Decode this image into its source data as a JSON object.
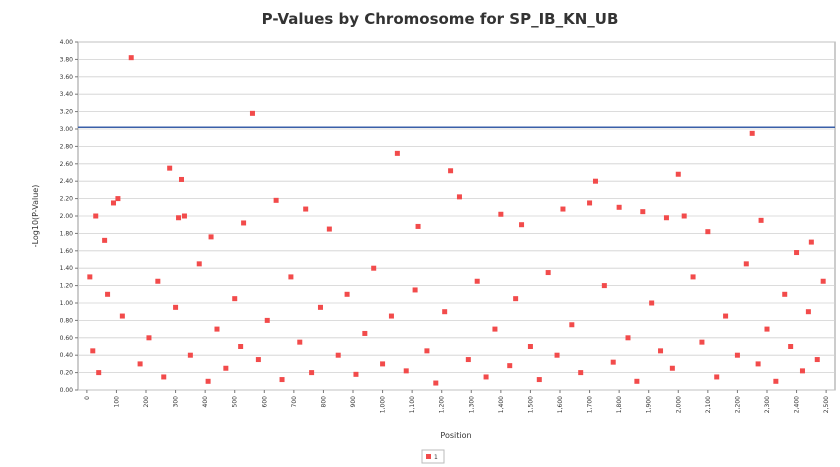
{
  "chart_data": {
    "type": "scatter",
    "title": "P-Values by Chromosome for SP_IB_KN_UB",
    "x_label": "Position",
    "y_label": "-Log10(P-Value)",
    "threshold": 3.02,
    "threshold_color": "#3a5fa8",
    "grid": true,
    "legend": "bottom",
    "xlim": [
      -30,
      2530
    ],
    "ylim": [
      0,
      4
    ],
    "xticks": [
      0,
      100,
      200,
      300,
      400,
      500,
      600,
      700,
      800,
      900,
      {
        "value": 1000,
        "label": "1,000"
      },
      {
        "value": 1100,
        "label": "1,100"
      },
      {
        "value": 1200,
        "label": "1,200"
      },
      {
        "value": 1300,
        "label": "1,300"
      },
      {
        "value": 1400,
        "label": "1,400"
      },
      {
        "value": 1500,
        "label": "1,500"
      },
      {
        "value": 1600,
        "label": "1,600"
      },
      {
        "value": 1700,
        "label": "1,700"
      },
      {
        "value": 1800,
        "label": "1,800"
      },
      {
        "value": 1900,
        "label": "1,900"
      },
      {
        "value": 2000,
        "label": "2,000"
      },
      {
        "value": 2100,
        "label": "2,100"
      },
      {
        "value": 2200,
        "label": "2,200"
      },
      {
        "value": 2300,
        "label": "2,300"
      },
      {
        "value": 2400,
        "label": "2,400"
      },
      {
        "value": 2500,
        "label": "2,500"
      }
    ],
    "yticks": [
      {
        "value": 0,
        "label": "0.00"
      },
      {
        "value": 0.2,
        "label": "0.20"
      },
      {
        "value": 0.4,
        "label": "0.40"
      },
      {
        "value": 0.6,
        "label": "0.60"
      },
      {
        "value": 0.8,
        "label": "0.80"
      },
      {
        "value": 1,
        "label": "1.00"
      },
      {
        "value": 1.2,
        "label": "1.20"
      },
      {
        "value": 1.4,
        "label": "1.40"
      },
      {
        "value": 1.6,
        "label": "1.60"
      },
      {
        "value": 1.8,
        "label": "1.80"
      },
      {
        "value": 2,
        "label": "2.00"
      },
      {
        "value": 2.2,
        "label": "2.20"
      },
      {
        "value": 2.4,
        "label": "2.40"
      },
      {
        "value": 2.6,
        "label": "2.60"
      },
      {
        "value": 2.8,
        "label": "2.80"
      },
      {
        "value": 3,
        "label": "3.00"
      },
      {
        "value": 3.2,
        "label": "3.20"
      },
      {
        "value": 3.4,
        "label": "3.40"
      },
      {
        "value": 3.6,
        "label": "3.60"
      },
      {
        "value": 3.8,
        "label": "3.80"
      },
      {
        "value": 4,
        "label": "4.00"
      }
    ],
    "x": [
      150,
      560,
      2250,
      1050,
      280,
      320,
      1230,
      1720,
      2000,
      105,
      90,
      640,
      740,
      1260,
      30,
      60,
      310,
      330,
      420,
      530,
      820,
      1120,
      1400,
      1470,
      1610,
      1700,
      1800,
      1880,
      1960,
      2020,
      2100,
      2280,
      2400,
      2450,
      10,
      20,
      40,
      70,
      120,
      180,
      210,
      240,
      260,
      300,
      350,
      380,
      410,
      440,
      470,
      500,
      520,
      580,
      610,
      660,
      690,
      720,
      760,
      790,
      850,
      880,
      910,
      940,
      970,
      1000,
      1030,
      1080,
      1110,
      1150,
      1180,
      1210,
      1290,
      1320,
      1350,
      1380,
      1430,
      1450,
      1500,
      1530,
      1560,
      1590,
      1640,
      1670,
      1750,
      1780,
      1830,
      1860,
      1910,
      1940,
      1980,
      2050,
      2080,
      2130,
      2160,
      2200,
      2230,
      2270,
      2300,
      2330,
      2360,
      2380,
      2420,
      2440,
      2470,
      2490
    ],
    "series": [
      {
        "name": "1",
        "color": "#f24b4b",
        "values": [
          3.82,
          3.18,
          2.95,
          2.72,
          2.55,
          2.42,
          2.52,
          2.4,
          2.48,
          2.2,
          2.15,
          2.18,
          2.08,
          2.22,
          2.0,
          1.72,
          1.98,
          2.0,
          1.76,
          1.92,
          1.85,
          1.88,
          2.02,
          1.9,
          2.08,
          2.15,
          2.1,
          2.05,
          1.98,
          2.0,
          1.82,
          1.95,
          1.58,
          1.7,
          1.3,
          0.45,
          0.2,
          1.1,
          0.85,
          0.3,
          0.6,
          1.25,
          0.15,
          0.95,
          0.4,
          1.45,
          0.1,
          0.7,
          0.25,
          1.05,
          0.5,
          0.35,
          0.8,
          0.12,
          1.3,
          0.55,
          0.2,
          0.95,
          0.4,
          1.1,
          0.18,
          0.65,
          1.4,
          0.3,
          0.85,
          0.22,
          1.15,
          0.45,
          0.08,
          0.9,
          0.35,
          1.25,
          0.15,
          0.7,
          0.28,
          1.05,
          0.5,
          0.12,
          1.35,
          0.4,
          0.75,
          0.2,
          1.2,
          0.32,
          0.6,
          0.1,
          1.0,
          0.45,
          0.25,
          1.3,
          0.55,
          0.15,
          0.85,
          0.4,
          1.45,
          0.3,
          0.7,
          0.1,
          1.1,
          0.5,
          0.22,
          0.9,
          0.35,
          1.25
        ]
      }
    ]
  }
}
